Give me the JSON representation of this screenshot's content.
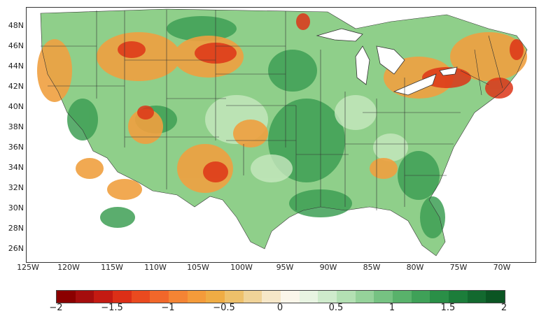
{
  "map": {
    "latitude_labels": [
      "48N",
      "46N",
      "44N",
      "42N",
      "40N",
      "38N",
      "36N",
      "34N",
      "32N",
      "30N",
      "28N",
      "26N"
    ],
    "longitude_labels": [
      "125W",
      "120W",
      "115W",
      "110W",
      "105W",
      "100W",
      "95W",
      "90W",
      "85W",
      "80W",
      "75W",
      "70W"
    ]
  },
  "colorbar": {
    "tick_labels": [
      "−2",
      "−1.5",
      "−1",
      "−0.5",
      "0",
      "0.5",
      "1",
      "1.5",
      "2"
    ],
    "colors": [
      "#8b0000",
      "#a50d0d",
      "#c41a12",
      "#dc2f17",
      "#ea4a1f",
      "#f1672a",
      "#f48434",
      "#f49b3a",
      "#efac44",
      "#eec06a",
      "#f0d398",
      "#f6e7c8",
      "#fbf6ea",
      "#e8f4e2",
      "#cfebcc",
      "#b3e0b3",
      "#95d29a",
      "#76c282",
      "#59b26b",
      "#3fa158",
      "#2a8f47",
      "#1c7d3a",
      "#13692f",
      "#0b5523"
    ]
  }
}
